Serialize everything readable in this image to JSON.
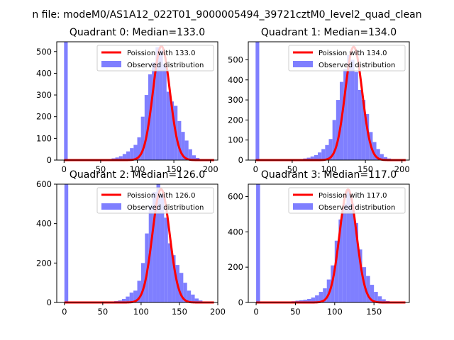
{
  "figure": {
    "suptitle": "n file: modeM0/AS1A12_022T01_9000005494_39721cztM0_level2_quad_clean"
  },
  "chart_data": [
    {
      "type": "bar",
      "title": "Quadrant 0: Median=133.0",
      "median": 133.0,
      "xlim": [
        -10,
        210
      ],
      "ylim": [
        0,
        545
      ],
      "xticks": [
        0,
        50,
        100,
        150,
        200
      ],
      "yticks": [
        0,
        100,
        200,
        300,
        400,
        500
      ],
      "legend": {
        "placement": "upper right",
        "entries": [
          "Poission with 133.0",
          "Observed distribution"
        ]
      },
      "series": [
        {
          "name": "Observed distribution",
          "kind": "histogram",
          "color": "#7f7fff",
          "bins": [
            [
              0,
              5,
              545
            ],
            [
              5,
              10,
              3
            ],
            [
              10,
              15,
              3
            ],
            [
              15,
              20,
              3
            ],
            [
              20,
              25,
              3
            ],
            [
              25,
              30,
              3
            ],
            [
              30,
              35,
              3
            ],
            [
              35,
              40,
              3
            ],
            [
              40,
              45,
              3
            ],
            [
              45,
              50,
              3
            ],
            [
              50,
              55,
              3
            ],
            [
              55,
              60,
              4
            ],
            [
              60,
              65,
              5
            ],
            [
              65,
              70,
              8
            ],
            [
              70,
              75,
              12
            ],
            [
              75,
              80,
              18
            ],
            [
              80,
              85,
              28
            ],
            [
              85,
              90,
              40
            ],
            [
              90,
              95,
              55
            ],
            [
              95,
              100,
              70
            ],
            [
              100,
              105,
              105
            ],
            [
              105,
              110,
              200
            ],
            [
              110,
              115,
              300
            ],
            [
              115,
              120,
              395
            ],
            [
              120,
              125,
              450
            ],
            [
              125,
              130,
              520
            ],
            [
              130,
              135,
              505
            ],
            [
              135,
              140,
              440
            ],
            [
              140,
              145,
              315
            ],
            [
              145,
              150,
              270
            ],
            [
              150,
              155,
              250
            ],
            [
              155,
              160,
              180
            ],
            [
              160,
              165,
              130
            ],
            [
              165,
              170,
              90
            ],
            [
              170,
              175,
              50
            ],
            [
              175,
              180,
              22
            ],
            [
              180,
              185,
              10
            ],
            [
              185,
              190,
              5
            ],
            [
              190,
              195,
              3
            ],
            [
              195,
              200,
              2
            ]
          ]
        },
        {
          "name": "Poission with 133.0",
          "kind": "curve",
          "color": "#ff0000",
          "peak": 525
        }
      ]
    },
    {
      "type": "bar",
      "title": "Quadrant 1: Median=134.0",
      "median": 134.0,
      "xlim": [
        -10,
        210
      ],
      "ylim": [
        0,
        590
      ],
      "xticks": [
        0,
        50,
        100,
        150,
        200
      ],
      "yticks": [
        0,
        100,
        200,
        300,
        400,
        500
      ],
      "legend": {
        "placement": "upper right",
        "entries": [
          "Poission with 134.0",
          "Observed distribution"
        ]
      },
      "series": [
        {
          "name": "Observed distribution",
          "kind": "histogram",
          "color": "#7f7fff",
          "bins": [
            [
              0,
              5,
              590
            ],
            [
              5,
              10,
              3
            ],
            [
              10,
              15,
              3
            ],
            [
              15,
              20,
              3
            ],
            [
              20,
              25,
              3
            ],
            [
              25,
              30,
              3
            ],
            [
              30,
              35,
              3
            ],
            [
              35,
              40,
              3
            ],
            [
              40,
              45,
              3
            ],
            [
              45,
              50,
              3
            ],
            [
              50,
              55,
              3
            ],
            [
              55,
              60,
              4
            ],
            [
              60,
              65,
              5
            ],
            [
              65,
              70,
              8
            ],
            [
              70,
              75,
              12
            ],
            [
              75,
              80,
              18
            ],
            [
              80,
              85,
              25
            ],
            [
              85,
              90,
              38
            ],
            [
              90,
              95,
              55
            ],
            [
              95,
              100,
              75
            ],
            [
              100,
              105,
              105
            ],
            [
              105,
              110,
              200
            ],
            [
              110,
              115,
              300
            ],
            [
              115,
              120,
              390
            ],
            [
              120,
              125,
              455
            ],
            [
              125,
              130,
              525
            ],
            [
              130,
              135,
              500
            ],
            [
              135,
              140,
              440
            ],
            [
              140,
              145,
              350
            ],
            [
              145,
              150,
              300
            ],
            [
              150,
              155,
              230
            ],
            [
              155,
              160,
              140
            ],
            [
              160,
              165,
              90
            ],
            [
              165,
              170,
              55
            ],
            [
              170,
              175,
              30
            ],
            [
              175,
              180,
              15
            ],
            [
              180,
              185,
              8
            ],
            [
              185,
              190,
              5
            ],
            [
              190,
              195,
              3
            ],
            [
              195,
              200,
              2
            ]
          ]
        },
        {
          "name": "Poission with 134.0",
          "kind": "curve",
          "color": "#ff0000",
          "peak": 565
        }
      ]
    },
    {
      "type": "bar",
      "title": "Quadrant 2: Median=126.0",
      "median": 126.0,
      "xlim": [
        -10,
        200
      ],
      "ylim": [
        0,
        600
      ],
      "xticks": [
        0,
        50,
        100,
        150,
        200
      ],
      "yticks": [
        0,
        200,
        400,
        600
      ],
      "legend": {
        "placement": "upper right",
        "entries": [
          "Poission with 126.0",
          "Observed distribution"
        ]
      },
      "series": [
        {
          "name": "Observed distribution",
          "kind": "histogram",
          "color": "#7f7fff",
          "bins": [
            [
              0,
              5,
              600
            ],
            [
              5,
              10,
              3
            ],
            [
              10,
              15,
              3
            ],
            [
              15,
              20,
              3
            ],
            [
              20,
              25,
              3
            ],
            [
              25,
              30,
              3
            ],
            [
              30,
              35,
              3
            ],
            [
              35,
              40,
              3
            ],
            [
              40,
              45,
              3
            ],
            [
              45,
              50,
              3
            ],
            [
              50,
              55,
              3
            ],
            [
              55,
              60,
              4
            ],
            [
              60,
              65,
              5
            ],
            [
              65,
              70,
              7
            ],
            [
              70,
              75,
              10
            ],
            [
              75,
              80,
              18
            ],
            [
              80,
              85,
              30
            ],
            [
              85,
              90,
              50
            ],
            [
              90,
              95,
              60
            ],
            [
              95,
              100,
              110
            ],
            [
              100,
              105,
              200
            ],
            [
              105,
              110,
              350
            ],
            [
              110,
              115,
              490
            ],
            [
              115,
              120,
              560
            ],
            [
              120,
              125,
              600
            ],
            [
              125,
              130,
              550
            ],
            [
              130,
              135,
              430
            ],
            [
              135,
              140,
              300
            ],
            [
              140,
              145,
              240
            ],
            [
              145,
              150,
              190
            ],
            [
              150,
              155,
              150
            ],
            [
              155,
              160,
              100
            ],
            [
              160,
              165,
              60
            ],
            [
              165,
              170,
              40
            ],
            [
              170,
              175,
              20
            ],
            [
              175,
              180,
              10
            ],
            [
              180,
              185,
              5
            ],
            [
              185,
              190,
              3
            ],
            [
              190,
              195,
              2
            ]
          ]
        },
        {
          "name": "Poission with 126.0",
          "kind": "curve",
          "color": "#ff0000",
          "peak": 575
        }
      ]
    },
    {
      "type": "bar",
      "title": "Quadrant 3: Median=117.0",
      "median": 117.0,
      "xlim": [
        -10,
        195
      ],
      "ylim": [
        0,
        670
      ],
      "xticks": [
        0,
        50,
        100,
        150
      ],
      "yticks": [
        0,
        200,
        400,
        600
      ],
      "legend": {
        "placement": "upper right",
        "entries": [
          "Poission with 117.0",
          "Observed distribution"
        ]
      },
      "series": [
        {
          "name": "Observed distribution",
          "kind": "histogram",
          "color": "#7f7fff",
          "bins": [
            [
              0,
              5,
              670
            ],
            [
              5,
              10,
              3
            ],
            [
              10,
              15,
              3
            ],
            [
              15,
              20,
              3
            ],
            [
              20,
              25,
              3
            ],
            [
              25,
              30,
              3
            ],
            [
              30,
              35,
              3
            ],
            [
              35,
              40,
              4
            ],
            [
              40,
              45,
              5
            ],
            [
              45,
              50,
              7
            ],
            [
              50,
              55,
              10
            ],
            [
              55,
              60,
              12
            ],
            [
              60,
              65,
              15
            ],
            [
              65,
              70,
              20
            ],
            [
              70,
              75,
              28
            ],
            [
              75,
              80,
              40
            ],
            [
              80,
              85,
              60
            ],
            [
              85,
              90,
              80
            ],
            [
              90,
              95,
              130
            ],
            [
              95,
              100,
              210
            ],
            [
              100,
              105,
              350
            ],
            [
              105,
              110,
              470
            ],
            [
              110,
              115,
              560
            ],
            [
              115,
              120,
              640
            ],
            [
              120,
              125,
              560
            ],
            [
              125,
              130,
              450
            ],
            [
              130,
              135,
              300
            ],
            [
              135,
              140,
              200
            ],
            [
              140,
              145,
              150
            ],
            [
              145,
              150,
              100
            ],
            [
              150,
              155,
              60
            ],
            [
              155,
              160,
              35
            ],
            [
              160,
              165,
              18
            ],
            [
              165,
              170,
              8
            ],
            [
              170,
              175,
              4
            ],
            [
              175,
              180,
              2
            ]
          ]
        },
        {
          "name": "Poission with 117.0",
          "kind": "curve",
          "color": "#ff0000",
          "peak": 640
        }
      ]
    }
  ]
}
